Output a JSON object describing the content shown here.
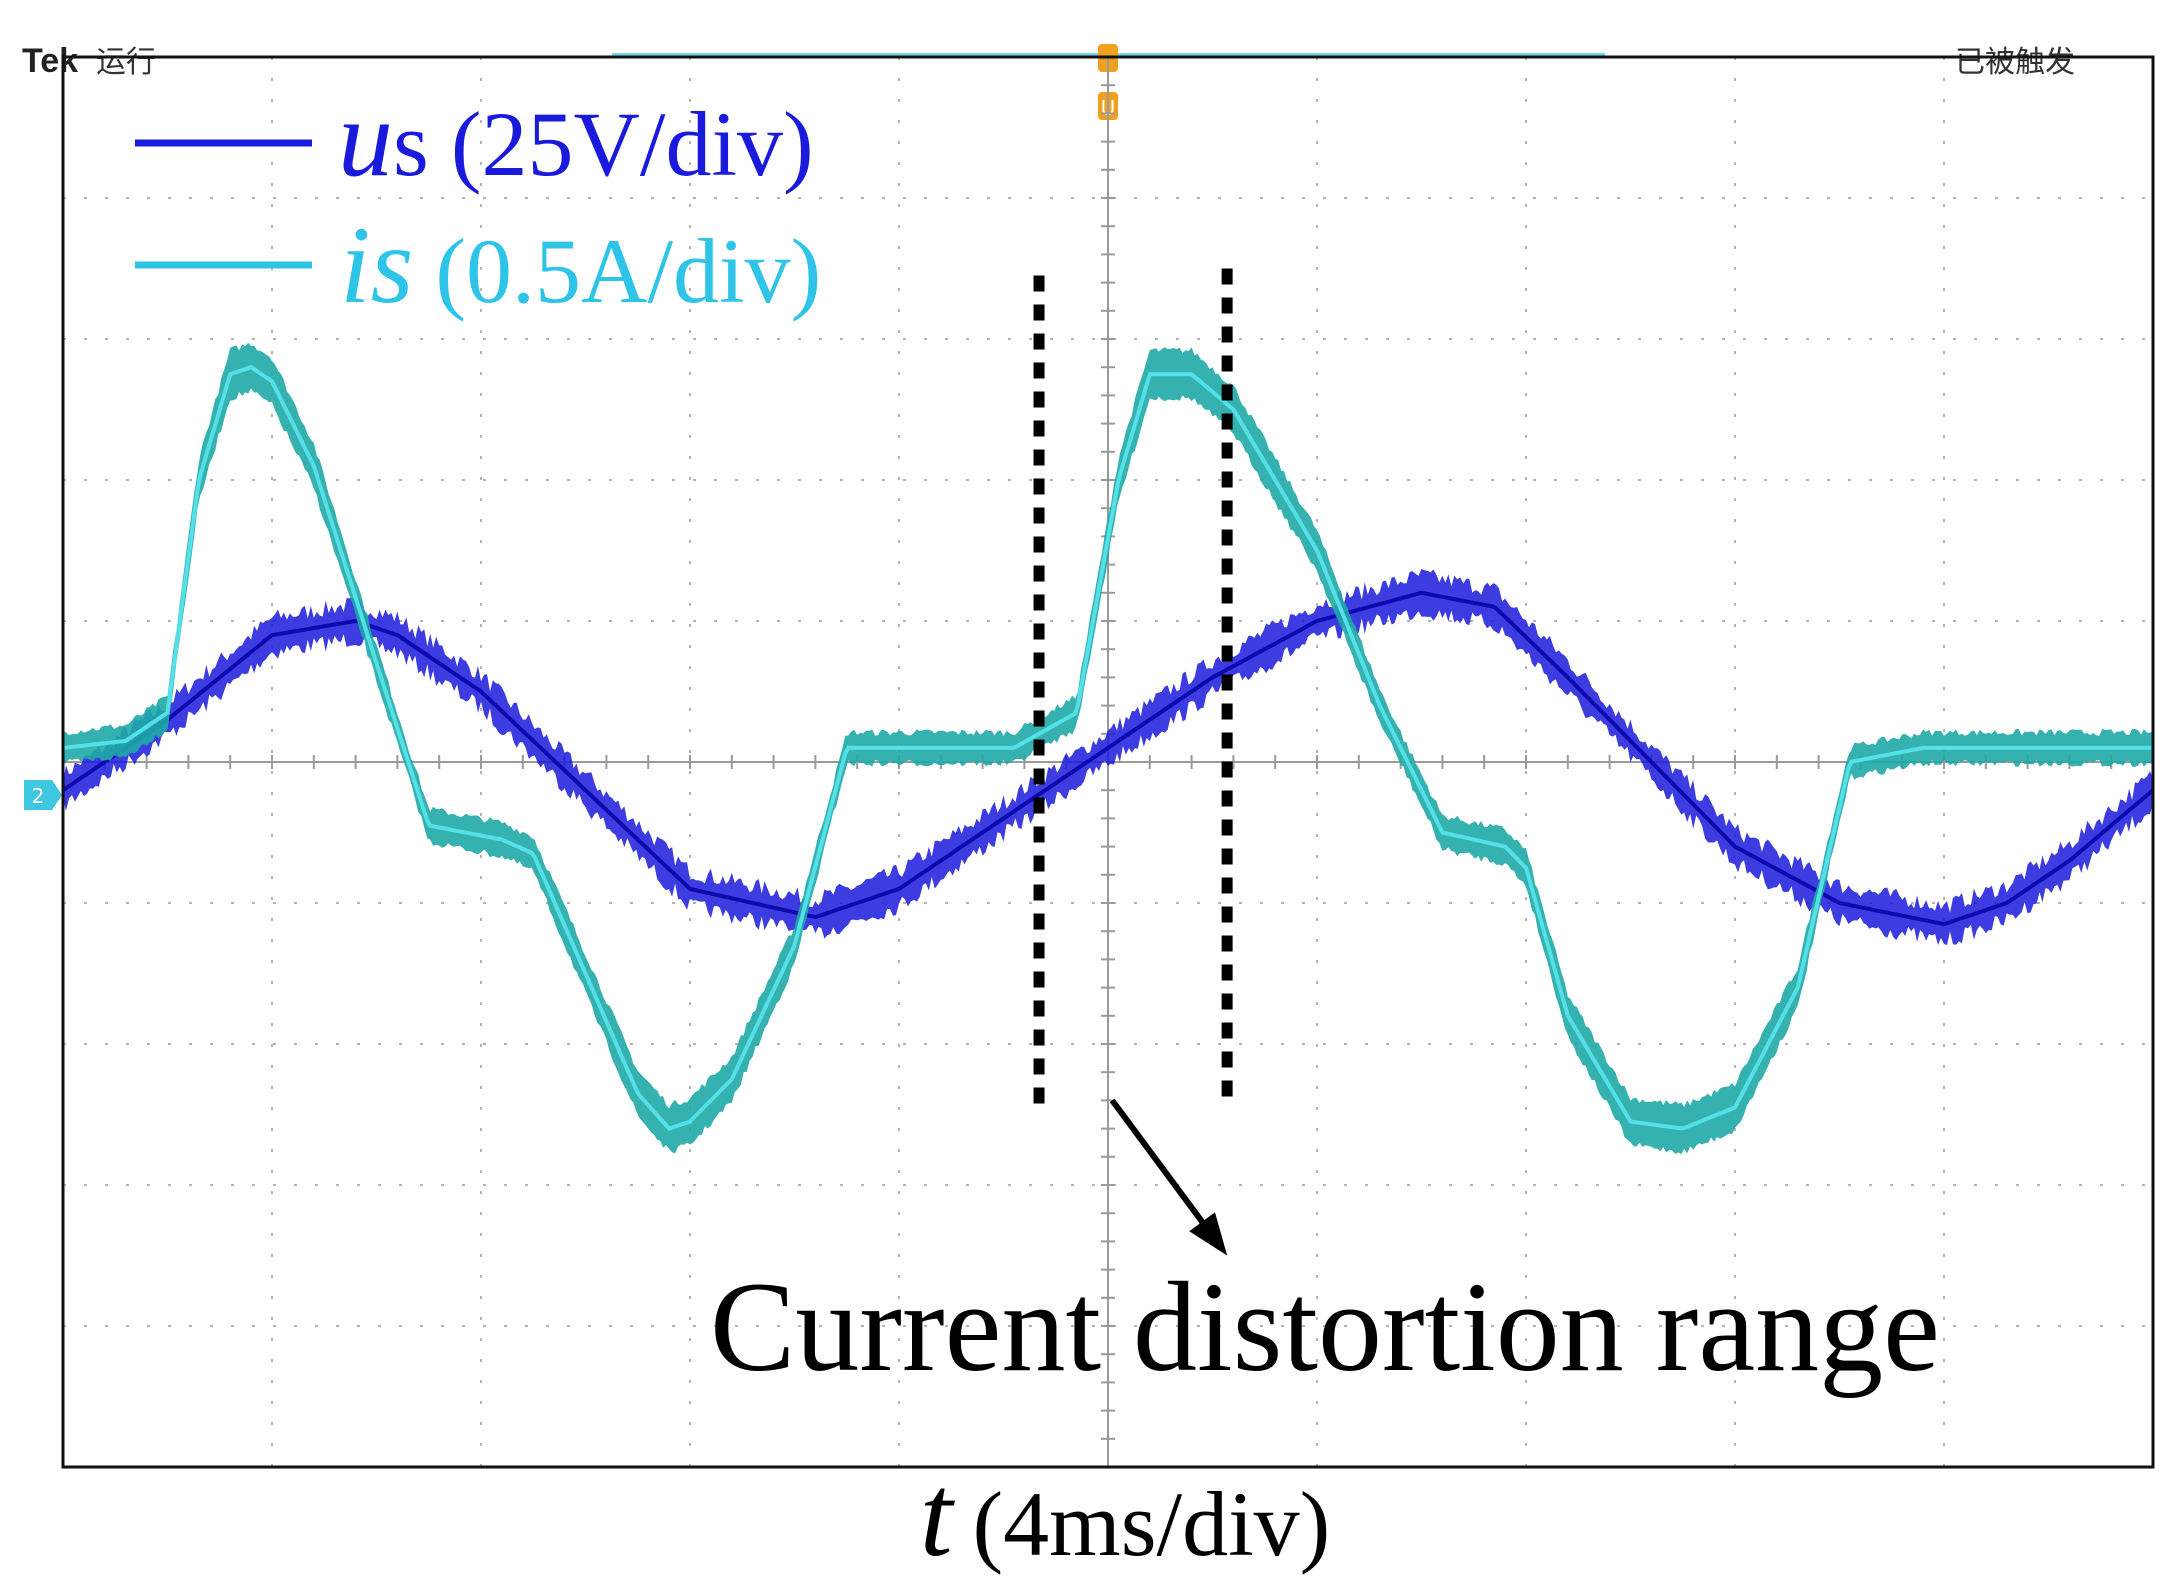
{
  "chart_data": {
    "type": "line",
    "title": "",
    "scope": {
      "brand": "Tek",
      "run_status": "运行",
      "trigger_status": "已被触发",
      "trigger_marker": "U",
      "channel_marker": "2"
    },
    "xlabel": {
      "symbol": "t",
      "units": "(4ms/div)"
    },
    "x_divisions": 10,
    "y_divisions": 10,
    "xlim": [
      0,
      10
    ],
    "ylim": [
      -5,
      5
    ],
    "grid": true,
    "legend": {
      "position": "top-left"
    },
    "series": [
      {
        "name": "us",
        "symbol": "u",
        "subscript": "s",
        "scale": "(25V/div)",
        "color": "#1a1adc",
        "x": [
          0,
          0.5,
          1.0,
          1.4,
          1.6,
          2.0,
          2.5,
          3.0,
          3.6,
          4.0,
          4.3,
          4.6,
          5.0,
          5.5,
          6.0,
          6.5,
          6.85,
          7.2,
          7.6,
          8.0,
          8.5,
          9.0,
          9.3,
          9.6,
          10.0
        ],
        "values": [
          -0.2,
          0.3,
          0.9,
          1.0,
          0.9,
          0.5,
          -0.2,
          -0.9,
          -1.1,
          -0.9,
          -0.6,
          -0.3,
          0.1,
          0.6,
          1.0,
          1.2,
          1.1,
          0.6,
          0.0,
          -0.6,
          -1.0,
          -1.15,
          -1.0,
          -0.7,
          -0.2
        ],
        "band": 0.18
      },
      {
        "name": "is",
        "symbol": "i",
        "subscript": "s",
        "scale": "(0.5A/div)",
        "color": "#1faaa6",
        "x": [
          0,
          0.3,
          0.5,
          0.65,
          0.8,
          0.9,
          1.0,
          1.2,
          1.5,
          1.75,
          2.1,
          2.25,
          2.5,
          2.75,
          2.9,
          3.0,
          3.2,
          3.5,
          3.75,
          4.0,
          4.2,
          4.55,
          4.85,
          5.05,
          5.2,
          5.4,
          5.6,
          6.0,
          6.3,
          6.6,
          6.9,
          7.0,
          7.2,
          7.5,
          7.75,
          8.0,
          8.3,
          8.55,
          8.9,
          9.3,
          10.0
        ],
        "values": [
          0.1,
          0.15,
          0.35,
          2.0,
          2.75,
          2.8,
          2.7,
          2.1,
          0.7,
          -0.45,
          -0.55,
          -0.65,
          -1.5,
          -2.35,
          -2.6,
          -2.55,
          -2.25,
          -1.3,
          0.1,
          0.1,
          0.1,
          0.1,
          0.35,
          2.0,
          2.75,
          2.75,
          2.5,
          1.5,
          0.4,
          -0.5,
          -0.6,
          -0.75,
          -1.8,
          -2.55,
          -2.6,
          -2.45,
          -1.6,
          0.0,
          0.1,
          0.1,
          0.1
        ],
        "band": 0.3
      }
    ],
    "annotations": [
      {
        "text": "Current distortion range",
        "bounds_x": [
          4.67,
          5.57
        ],
        "arrow_from": [
          5.02,
          -2.4
        ],
        "arrow_to": [
          5.57,
          -3.5
        ]
      }
    ]
  }
}
